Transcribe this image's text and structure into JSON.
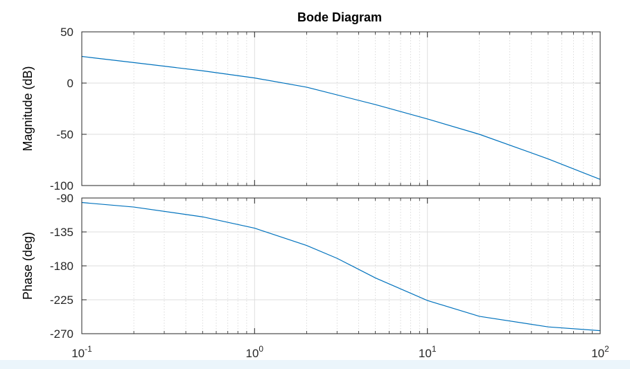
{
  "chart_data": [
    {
      "type": "line",
      "title": "Bode Diagram",
      "ylabel": "Magnitude (dB)",
      "xscale": "log",
      "xlim": [
        0.1,
        100
      ],
      "ylim": [
        -100,
        50
      ],
      "yticks": [
        50,
        0,
        -50,
        -100
      ],
      "grid": true,
      "series": [
        {
          "color": "#0072bd",
          "x": [
            0.1,
            0.2,
            0.5,
            1,
            2,
            5,
            10,
            20,
            50,
            100
          ],
          "y": [
            26,
            20,
            12,
            5,
            -4,
            -21,
            -35,
            -50,
            -74,
            -94
          ]
        }
      ]
    },
    {
      "type": "line",
      "ylabel": "Phase (deg)",
      "xscale": "log",
      "xlim": [
        0.1,
        100
      ],
      "ylim": [
        -270,
        -90
      ],
      "yticks": [
        -90,
        -135,
        -180,
        -225,
        -270
      ],
      "grid": true,
      "series": [
        {
          "color": "#0072bd",
          "x": [
            0.1,
            0.2,
            0.5,
            1,
            2,
            3,
            5,
            10,
            20,
            50,
            100
          ],
          "y": [
            -96,
            -102,
            -115,
            -130,
            -153,
            -170,
            -196,
            -226,
            -247,
            -261,
            -266
          ]
        }
      ]
    }
  ],
  "x_tick_labels": [
    {
      "base": "10",
      "exp": "-1"
    },
    {
      "base": "10",
      "exp": "0"
    },
    {
      "base": "10",
      "exp": "1"
    },
    {
      "base": "10",
      "exp": "2"
    }
  ]
}
